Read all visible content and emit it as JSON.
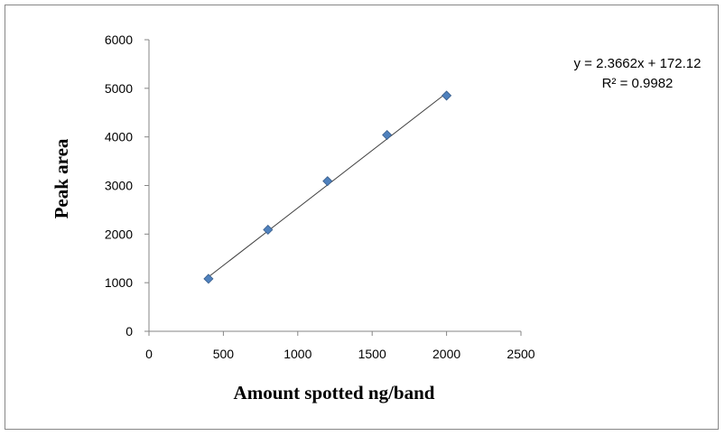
{
  "chart_data": {
    "type": "scatter",
    "title": "",
    "xlabel": "Amount spotted ng/band",
    "ylabel": "Peak area",
    "xlim": [
      0,
      2500
    ],
    "ylim": [
      0,
      6000
    ],
    "x_ticks": [
      0,
      500,
      1000,
      1500,
      2000,
      2500
    ],
    "y_ticks": [
      0,
      1000,
      2000,
      3000,
      4000,
      5000,
      6000
    ],
    "grid": false,
    "legend": "none",
    "series": [
      {
        "marker": "diamond",
        "color": "#4F81BD",
        "x": [
          400,
          800,
          1200,
          1600,
          2000
        ],
        "y": [
          1080,
          2090,
          3090,
          4040,
          4850
        ]
      }
    ],
    "trendline": {
      "type": "linear",
      "slope": 2.3662,
      "intercept": 172.12,
      "x_range": [
        400,
        2000
      ],
      "color": "#404040"
    },
    "annotations": {
      "equation": "y = 2.3662x + 172.12",
      "r_squared": "R² = 0.9982"
    }
  }
}
